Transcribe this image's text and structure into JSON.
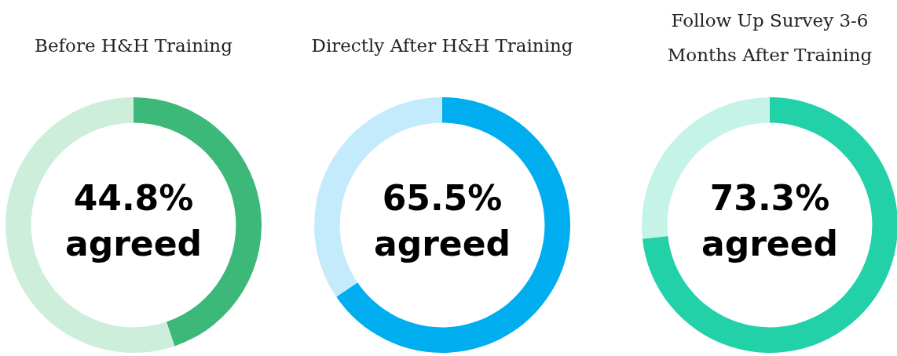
{
  "chart_data": [
    {
      "type": "donut",
      "title": "Before H&H Training",
      "categories": [
        "agreed",
        null
      ],
      "values": [
        44.8,
        55.2
      ],
      "colors": [
        "#3cb878",
        "#cdeedb"
      ],
      "value_labels": [
        "44.8%",
        null
      ],
      "legend": false
    },
    {
      "type": "donut",
      "title": "Directly After H&H Training",
      "categories": [
        "agreed",
        null
      ],
      "values": [
        65.5,
        34.5
      ],
      "colors": [
        "#00aeef",
        "#c4ebfb"
      ],
      "value_labels": [
        "65.5%",
        null
      ],
      "legend": false
    },
    {
      "type": "donut",
      "title": "Follow Up Survey 3-6 Months After Training",
      "categories": [
        "agreed",
        null
      ],
      "values": [
        73.3,
        26.7
      ],
      "colors": [
        "#23d1a9",
        "#c6f3e8"
      ],
      "value_labels": [
        "73.3%",
        null
      ],
      "legend": false
    }
  ]
}
